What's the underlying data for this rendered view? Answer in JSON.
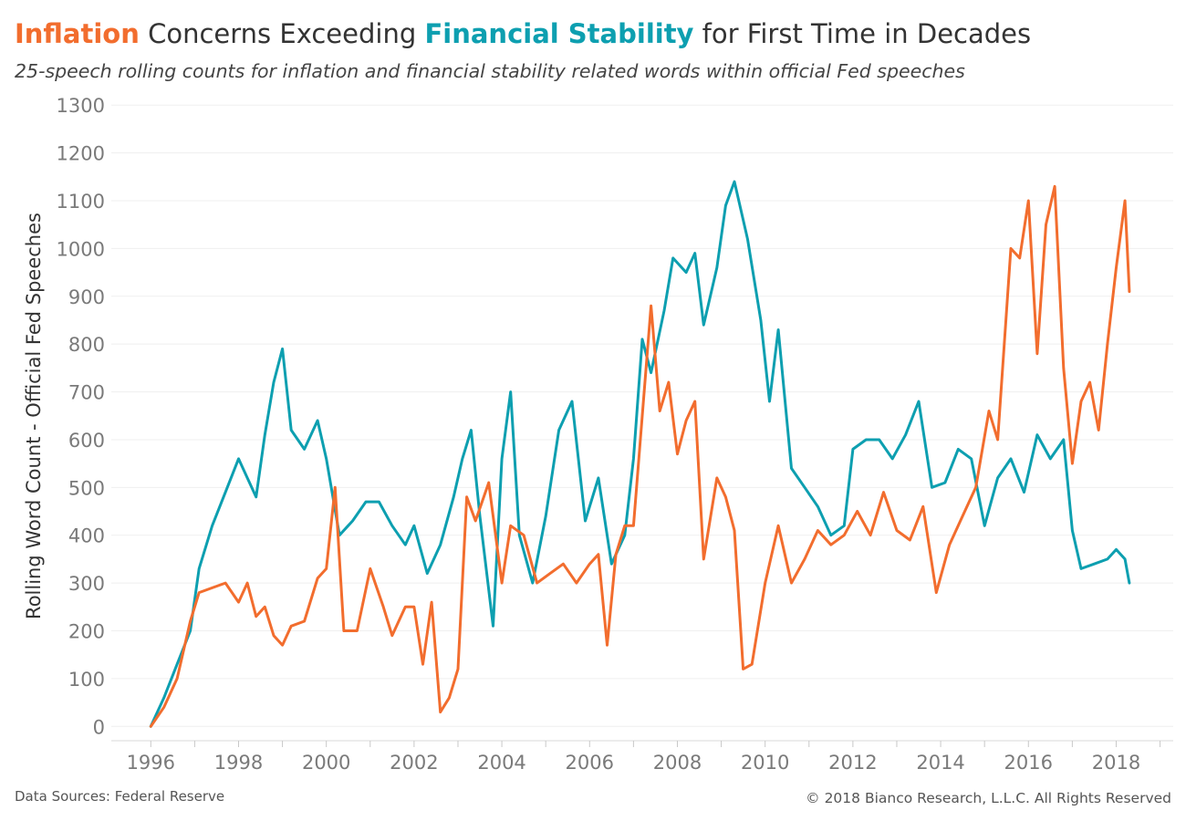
{
  "header": {
    "title_word_1": "Inflation",
    "title_mid": " Concerns Exceeding ",
    "title_word_2": "Financial Stability",
    "title_end": " for First Time in Decades",
    "subtitle": "25-speech rolling counts for inflation and financial stability related words within official Fed speeches"
  },
  "footer": {
    "source": "Data Sources: Federal Reserve",
    "copyright": "© 2018 Bianco Research, L.L.C. All Rights Reserved"
  },
  "colors": {
    "inflation": "#f26d2e",
    "financial_stability": "#0d9fb0"
  },
  "chart_data": {
    "type": "line",
    "title": "Inflation Concerns Exceeding Financial Stability for First Time in Decades",
    "subtitle": "25-speech rolling counts for inflation and financial stability related words within official Fed speeches",
    "xlabel": "",
    "ylabel": "Rolling Word Count - Official Fed Speeches",
    "xlim": [
      1995.1,
      2019.3
    ],
    "ylim": [
      -30,
      1310
    ],
    "x_ticks": [
      "1996",
      "1998",
      "2000",
      "2002",
      "2004",
      "2006",
      "2008",
      "2010",
      "2012",
      "2014",
      "2016",
      "2018"
    ],
    "y_ticks": [
      "0",
      "100",
      "200",
      "300",
      "400",
      "500",
      "600",
      "700",
      "800",
      "900",
      "1000",
      "1100",
      "1200",
      "1300"
    ],
    "grid": "horizontal",
    "legend": "none",
    "series": [
      {
        "color": "#0d9fb0",
        "x": [
          1996.0,
          1996.3,
          1996.6,
          1996.9,
          1997.1,
          1997.4,
          1997.7,
          1998.0,
          1998.2,
          1998.4,
          1998.6,
          1998.8,
          1999.0,
          1999.2,
          1999.5,
          1999.8,
          2000.0,
          2000.3,
          2000.6,
          2000.9,
          2001.2,
          2001.5,
          2001.8,
          2002.0,
          2002.3,
          2002.6,
          2002.9,
          2003.1,
          2003.3,
          2003.5,
          2003.8,
          2004.0,
          2004.2,
          2004.4,
          2004.7,
          2005.0,
          2005.3,
          2005.6,
          2005.9,
          2006.2,
          2006.5,
          2006.8,
          2007.0,
          2007.2,
          2007.4,
          2007.7,
          2007.9,
          2008.2,
          2008.4,
          2008.6,
          2008.9,
          2009.1,
          2009.3,
          2009.6,
          2009.9,
          2010.1,
          2010.3,
          2010.6,
          2010.9,
          2011.2,
          2011.5,
          2011.8,
          2012.0,
          2012.3,
          2012.6,
          2012.9,
          2013.2,
          2013.5,
          2013.8,
          2014.1,
          2014.4,
          2014.7,
          2015.0,
          2015.3,
          2015.6,
          2015.9,
          2016.2,
          2016.5,
          2016.8,
          2017.0,
          2017.2,
          2017.5,
          2017.8,
          2018.0,
          2018.2,
          2018.3
        ],
        "y": [
          0,
          60,
          130,
          200,
          330,
          420,
          490,
          560,
          520,
          480,
          610,
          720,
          790,
          620,
          580,
          640,
          560,
          400,
          430,
          470,
          470,
          420,
          380,
          420,
          320,
          380,
          480,
          560,
          620,
          440,
          210,
          560,
          700,
          400,
          300,
          440,
          620,
          680,
          430,
          520,
          340,
          400,
          560,
          810,
          740,
          870,
          980,
          950,
          990,
          840,
          960,
          1090,
          1140,
          1020,
          850,
          680,
          830,
          540,
          500,
          460,
          400,
          420,
          580,
          600,
          600,
          560,
          610,
          680,
          500,
          510,
          580,
          560,
          420,
          520,
          560,
          490,
          610,
          560,
          600,
          410,
          330,
          340,
          350,
          370,
          350,
          300
        ]
      },
      {
        "color": "#f26d2e",
        "x": [
          1996.0,
          1996.3,
          1996.6,
          1996.9,
          1997.1,
          1997.4,
          1997.7,
          1998.0,
          1998.2,
          1998.4,
          1998.6,
          1998.8,
          1999.0,
          1999.2,
          1999.5,
          1999.8,
          2000.0,
          2000.2,
          2000.4,
          2000.7,
          2001.0,
          2001.3,
          2001.5,
          2001.8,
          2002.0,
          2002.2,
          2002.4,
          2002.6,
          2002.8,
          2003.0,
          2003.2,
          2003.4,
          2003.7,
          2004.0,
          2004.2,
          2004.5,
          2004.8,
          2005.1,
          2005.4,
          2005.7,
          2006.0,
          2006.2,
          2006.4,
          2006.6,
          2006.8,
          2007.0,
          2007.2,
          2007.4,
          2007.6,
          2007.8,
          2008.0,
          2008.2,
          2008.4,
          2008.6,
          2008.9,
          2009.1,
          2009.3,
          2009.5,
          2009.7,
          2010.0,
          2010.3,
          2010.6,
          2010.9,
          2011.2,
          2011.5,
          2011.8,
          2012.1,
          2012.4,
          2012.7,
          2013.0,
          2013.3,
          2013.6,
          2013.9,
          2014.2,
          2014.5,
          2014.8,
          2015.1,
          2015.3,
          2015.6,
          2015.8,
          2016.0,
          2016.2,
          2016.4,
          2016.6,
          2016.8,
          2017.0,
          2017.2,
          2017.4,
          2017.6,
          2017.8,
          2018.0,
          2018.2,
          2018.3
        ],
        "y": [
          0,
          40,
          100,
          220,
          280,
          290,
          300,
          260,
          300,
          230,
          250,
          190,
          170,
          210,
          220,
          310,
          330,
          500,
          200,
          200,
          330,
          250,
          190,
          250,
          250,
          130,
          260,
          30,
          60,
          120,
          480,
          430,
          510,
          300,
          420,
          400,
          300,
          320,
          340,
          300,
          340,
          360,
          170,
          360,
          420,
          420,
          650,
          880,
          660,
          720,
          570,
          640,
          680,
          350,
          520,
          480,
          410,
          120,
          130,
          300,
          420,
          300,
          350,
          410,
          380,
          400,
          450,
          400,
          490,
          410,
          390,
          460,
          280,
          380,
          440,
          500,
          660,
          600,
          1000,
          980,
          1100,
          780,
          1050,
          1130,
          750,
          550,
          680,
          720,
          620,
          800,
          960,
          1100,
          910
        ]
      }
    ]
  }
}
